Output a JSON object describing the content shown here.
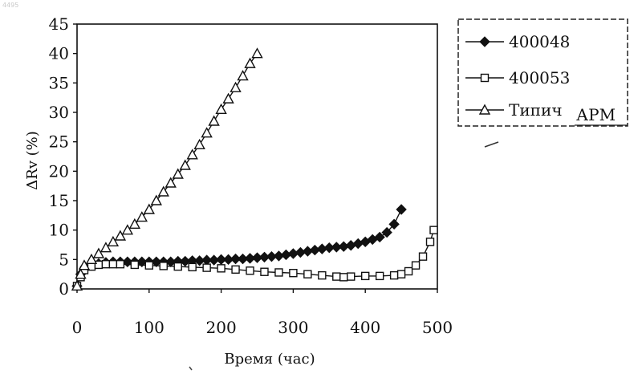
{
  "corner_mark": "4495",
  "chart_data": {
    "type": "line",
    "xlabel": "Время (час)",
    "ylabel": "ΔRv (%)",
    "xlim": [
      0,
      500
    ],
    "ylim": [
      0,
      45
    ],
    "xticks": [
      "0",
      "100",
      "200",
      "300",
      "400",
      "500"
    ],
    "yticks": [
      "0",
      "5",
      "10",
      "15",
      "20",
      "25",
      "30",
      "35",
      "40",
      "45"
    ],
    "grid": false,
    "legend_position": "right",
    "series": [
      {
        "name": "400048",
        "marker": "filled-diamond",
        "x": [
          0,
          5,
          10,
          20,
          30,
          40,
          50,
          60,
          70,
          80,
          90,
          100,
          110,
          120,
          130,
          140,
          150,
          160,
          170,
          180,
          190,
          200,
          210,
          220,
          230,
          240,
          250,
          260,
          270,
          280,
          290,
          300,
          310,
          320,
          330,
          340,
          350,
          360,
          370,
          380,
          390,
          400,
          410,
          420,
          430,
          440,
          450
        ],
        "y": [
          0.5,
          2.5,
          3.5,
          4.0,
          4.3,
          4.5,
          4.6,
          4.6,
          4.6,
          4.6,
          4.6,
          4.6,
          4.6,
          4.6,
          4.6,
          4.7,
          4.7,
          4.8,
          4.8,
          4.9,
          4.9,
          5.0,
          5.0,
          5.1,
          5.1,
          5.2,
          5.3,
          5.4,
          5.5,
          5.6,
          5.8,
          6.0,
          6.2,
          6.4,
          6.6,
          6.8,
          7.0,
          7.1,
          7.2,
          7.4,
          7.7,
          8.0,
          8.4,
          8.8,
          9.6,
          11.0,
          13.5
        ]
      },
      {
        "name": "400053",
        "marker": "open-square",
        "x": [
          0,
          5,
          10,
          20,
          30,
          40,
          50,
          60,
          80,
          100,
          120,
          140,
          160,
          180,
          200,
          220,
          240,
          260,
          280,
          300,
          320,
          340,
          360,
          370,
          380,
          400,
          420,
          440,
          450,
          460,
          470,
          480,
          490,
          495
        ],
        "y": [
          0.5,
          2.0,
          3.2,
          3.8,
          4.1,
          4.2,
          4.2,
          4.2,
          4.1,
          4.0,
          3.9,
          3.8,
          3.7,
          3.6,
          3.5,
          3.3,
          3.1,
          2.9,
          2.8,
          2.7,
          2.5,
          2.3,
          2.1,
          2.0,
          2.1,
          2.2,
          2.2,
          2.3,
          2.5,
          3.0,
          4.0,
          5.5,
          8.0,
          10.0
        ]
      },
      {
        "name": "Типич",
        "marker": "open-triangle",
        "x": [
          0,
          5,
          10,
          20,
          30,
          40,
          50,
          60,
          70,
          80,
          90,
          100,
          110,
          120,
          130,
          140,
          150,
          160,
          170,
          180,
          190,
          200,
          210,
          220,
          230,
          240,
          250
        ],
        "y": [
          0.5,
          2.5,
          4.0,
          5.0,
          6.0,
          7.0,
          8.0,
          9.0,
          10.0,
          11.0,
          12.2,
          13.5,
          15.0,
          16.5,
          18.0,
          19.5,
          21.0,
          22.8,
          24.5,
          26.5,
          28.5,
          30.5,
          32.3,
          34.2,
          36.2,
          38.3,
          40.0
        ]
      }
    ],
    "annotations": [
      "АРМ"
    ]
  }
}
